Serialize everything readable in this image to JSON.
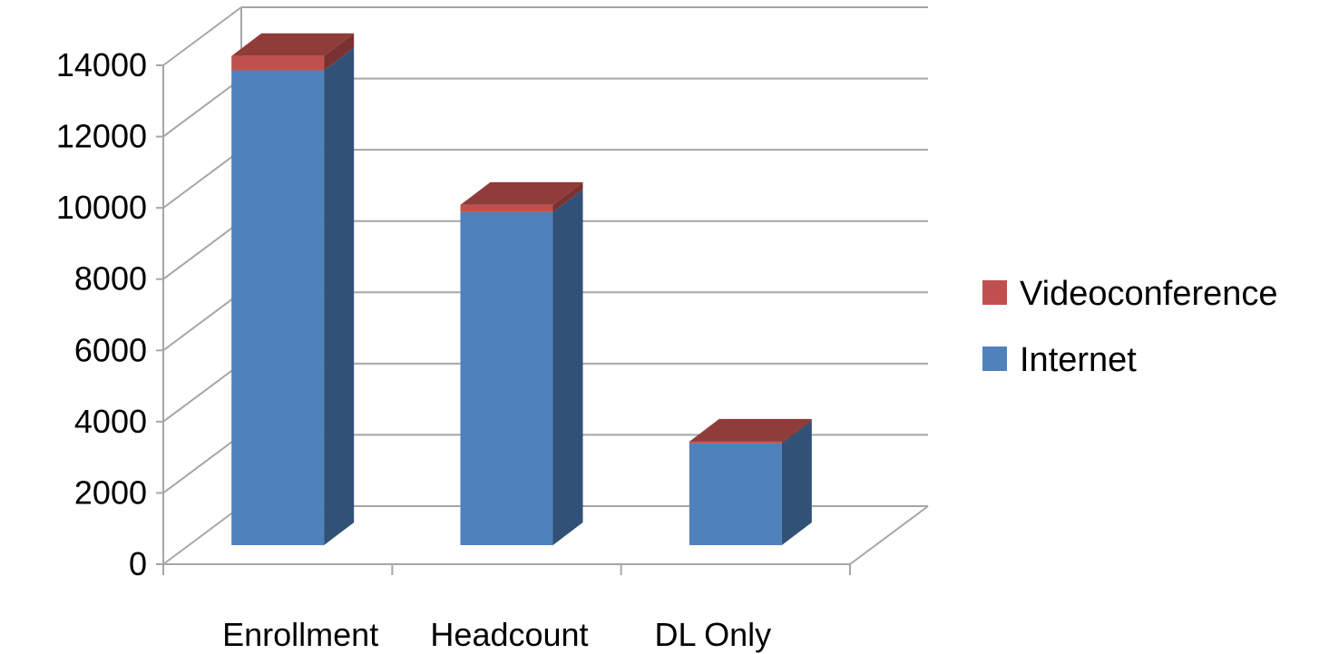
{
  "chart_data": {
    "type": "bar",
    "stacked": true,
    "three_d": true,
    "categories": [
      "Enrollment",
      "Headcount",
      "DL Only"
    ],
    "series": [
      {
        "name": "Internet",
        "values": [
          13300,
          9330,
          2850
        ],
        "color": "#4F81BD"
      },
      {
        "name": "Videoconference",
        "values": [
          400,
          200,
          50
        ],
        "color": "#C0504D"
      }
    ],
    "ylim": [
      0,
      14000
    ],
    "yticks": [
      0,
      2000,
      4000,
      6000,
      8000,
      10000,
      12000,
      14000
    ],
    "grid": true,
    "legend_position": "right",
    "legend_order": [
      "Videoconference",
      "Internet"
    ],
    "title": "",
    "xlabel": "",
    "ylabel": ""
  }
}
